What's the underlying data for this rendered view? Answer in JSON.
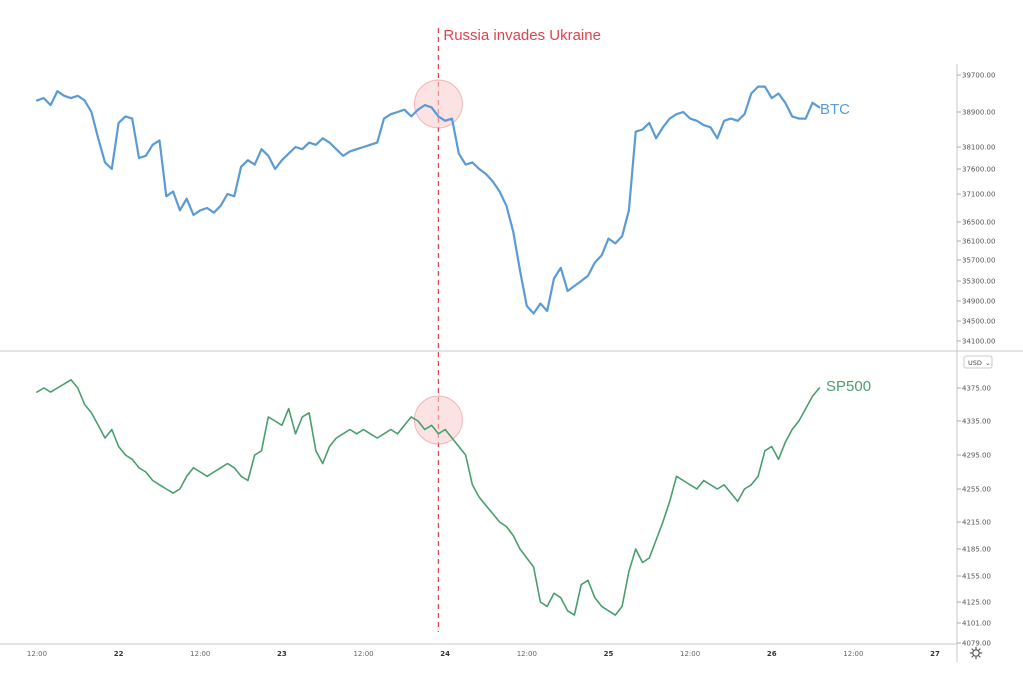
{
  "annotation": "Russia invades Ukraine",
  "colors": {
    "btc": "#5b9bd5",
    "sp500": "#4a9e6e",
    "annotation": "#e0444c",
    "highlight_fill": "#f8cccc",
    "grid": "#c8c8c8"
  },
  "unit_badge": "USD",
  "settings_icon": "gear-icon",
  "x_axis": {
    "ticks": [
      {
        "label": "12:00",
        "x": 0,
        "bold": false
      },
      {
        "label": "22",
        "x": 12,
        "bold": true
      },
      {
        "label": "12:00",
        "x": 24,
        "bold": false
      },
      {
        "label": "23",
        "x": 36,
        "bold": true
      },
      {
        "label": "12:00",
        "x": 48,
        "bold": false
      },
      {
        "label": "24",
        "x": 60,
        "bold": true
      },
      {
        "label": "12:00",
        "x": 72,
        "bold": false
      },
      {
        "label": "25",
        "x": 84,
        "bold": true
      },
      {
        "label": "12:00",
        "x": 96,
        "bold": false
      },
      {
        "label": "26",
        "x": 108,
        "bold": true
      },
      {
        "label": "12:00",
        "x": 120,
        "bold": false
      },
      {
        "label": "27",
        "x": 132,
        "bold": true
      }
    ],
    "event_x": 59
  },
  "chart_data": [
    {
      "type": "line",
      "series": [
        {
          "name": "BTC"
        }
      ],
      "name": "BTC",
      "yticks": [
        39700,
        38900,
        38100,
        37600,
        37100,
        36500,
        36100,
        35700,
        35300,
        34900,
        34500,
        34100
      ],
      "ytick_labels": [
        "39700.00",
        "38900.00",
        "38100.00",
        "37600.00",
        "37100.00",
        "36500.00",
        "36100.00",
        "35700.00",
        "35300.00",
        "34900.00",
        "34500.00",
        "34100.00"
      ],
      "x": [
        0,
        1,
        2,
        3,
        4,
        5,
        6,
        7,
        8,
        9,
        10,
        11,
        12,
        13,
        14,
        15,
        16,
        17,
        18,
        19,
        20,
        21,
        22,
        23,
        24,
        25,
        26,
        27,
        28,
        29,
        30,
        31,
        32,
        33,
        34,
        35,
        36,
        37,
        38,
        39,
        40,
        41,
        42,
        43,
        44,
        45,
        46,
        47,
        48,
        49,
        50,
        51,
        52,
        53,
        54,
        55,
        56,
        57,
        58,
        59,
        60,
        61,
        62,
        63,
        64,
        65,
        66,
        67,
        68,
        69,
        70,
        71,
        72,
        73,
        74,
        75,
        76,
        77,
        78,
        79,
        80,
        81,
        82,
        83,
        84,
        85,
        86,
        87,
        88,
        89,
        90,
        91,
        92,
        93,
        94,
        95,
        96,
        97,
        98,
        99,
        100,
        101,
        102,
        103,
        104,
        105,
        106,
        107,
        108,
        109,
        110,
        111,
        112,
        113,
        114,
        115
      ],
      "values": [
        39150,
        39200,
        39050,
        39350,
        39250,
        39200,
        39250,
        39150,
        38900,
        38300,
        37750,
        37600,
        38650,
        38800,
        38750,
        37850,
        37900,
        38150,
        38250,
        37050,
        37150,
        36750,
        37000,
        36650,
        36750,
        36800,
        36700,
        36850,
        37100,
        37050,
        37650,
        37800,
        37700,
        38050,
        37900,
        37600,
        37800,
        37950,
        38100,
        38050,
        38200,
        38150,
        38300,
        38200,
        38050,
        37900,
        38000,
        38050,
        38100,
        38150,
        38200,
        38750,
        38850,
        38900,
        38950,
        38800,
        38950,
        39050,
        39000,
        38800,
        38700,
        38750,
        37950,
        37700,
        37750,
        37600,
        37500,
        37350,
        37150,
        36850,
        36300,
        35500,
        34800,
        34650,
        34850,
        34700,
        35350,
        35550,
        35100,
        35200,
        35300,
        35400,
        35650,
        35800,
        36150,
        36050,
        36200,
        36750,
        38450,
        38500,
        38650,
        38300,
        38550,
        38750,
        38850,
        38900,
        38750,
        38700,
        38600,
        38550,
        38300,
        38700,
        38750,
        38700,
        38850,
        39300,
        39450,
        39450,
        39200,
        39300,
        39100,
        38800,
        38750,
        38750,
        39100,
        39000
      ]
    },
    {
      "type": "line",
      "series": [
        {
          "name": "SP500"
        }
      ],
      "name": "SP500",
      "yticks": [
        4375,
        4335,
        4295,
        4255,
        4215,
        4185,
        4155,
        4125,
        4101,
        4079
      ],
      "ytick_labels": [
        "4375.00",
        "4335.00",
        "4295.00",
        "4255.00",
        "4215.00",
        "4185.00",
        "4155.00",
        "4125.00",
        "4101.00",
        "4079.00"
      ],
      "x": [
        0,
        1,
        2,
        3,
        4,
        5,
        6,
        7,
        8,
        9,
        10,
        11,
        12,
        13,
        14,
        15,
        16,
        17,
        18,
        19,
        20,
        21,
        22,
        23,
        24,
        25,
        26,
        27,
        28,
        29,
        30,
        31,
        32,
        33,
        34,
        35,
        36,
        37,
        38,
        39,
        40,
        41,
        42,
        43,
        44,
        45,
        46,
        47,
        48,
        49,
        50,
        51,
        52,
        53,
        54,
        55,
        56,
        57,
        58,
        59,
        60,
        61,
        62,
        63,
        64,
        65,
        66,
        67,
        68,
        69,
        70,
        71,
        72,
        73,
        74,
        75,
        76,
        77,
        78,
        79,
        80,
        81,
        82,
        83,
        84,
        85,
        86,
        87,
        88,
        89,
        90,
        91,
        92,
        93,
        94,
        95,
        96,
        97,
        98,
        99,
        100,
        101,
        102,
        103,
        104,
        105,
        106,
        107,
        108,
        109,
        110,
        111,
        112,
        113,
        114,
        115
      ],
      "values": [
        4370,
        4375,
        4370,
        4375,
        4380,
        4385,
        4375,
        4355,
        4345,
        4330,
        4315,
        4325,
        4305,
        4295,
        4290,
        4280,
        4275,
        4265,
        4260,
        4255,
        4250,
        4255,
        4270,
        4280,
        4275,
        4270,
        4275,
        4280,
        4285,
        4280,
        4270,
        4265,
        4295,
        4300,
        4340,
        4335,
        4330,
        4350,
        4320,
        4340,
        4345,
        4300,
        4285,
        4305,
        4315,
        4320,
        4325,
        4320,
        4325,
        4320,
        4315,
        4320,
        4325,
        4320,
        4330,
        4340,
        4335,
        4325,
        4330,
        4320,
        4325,
        4315,
        4305,
        4295,
        4260,
        4245,
        4235,
        4225,
        4215,
        4210,
        4200,
        4185,
        4175,
        4165,
        4125,
        4120,
        4135,
        4130,
        4115,
        4110,
        4145,
        4150,
        4130,
        4120,
        4115,
        4110,
        4120,
        4160,
        4185,
        4170,
        4175,
        4195,
        4215,
        4240,
        4270,
        4265,
        4260,
        4255,
        4265,
        4260,
        4255,
        4260,
        4250,
        4240,
        4255,
        4260,
        4270,
        4300,
        4305,
        4290,
        4310,
        4325,
        4335,
        4350,
        4365,
        4375
      ]
    }
  ]
}
